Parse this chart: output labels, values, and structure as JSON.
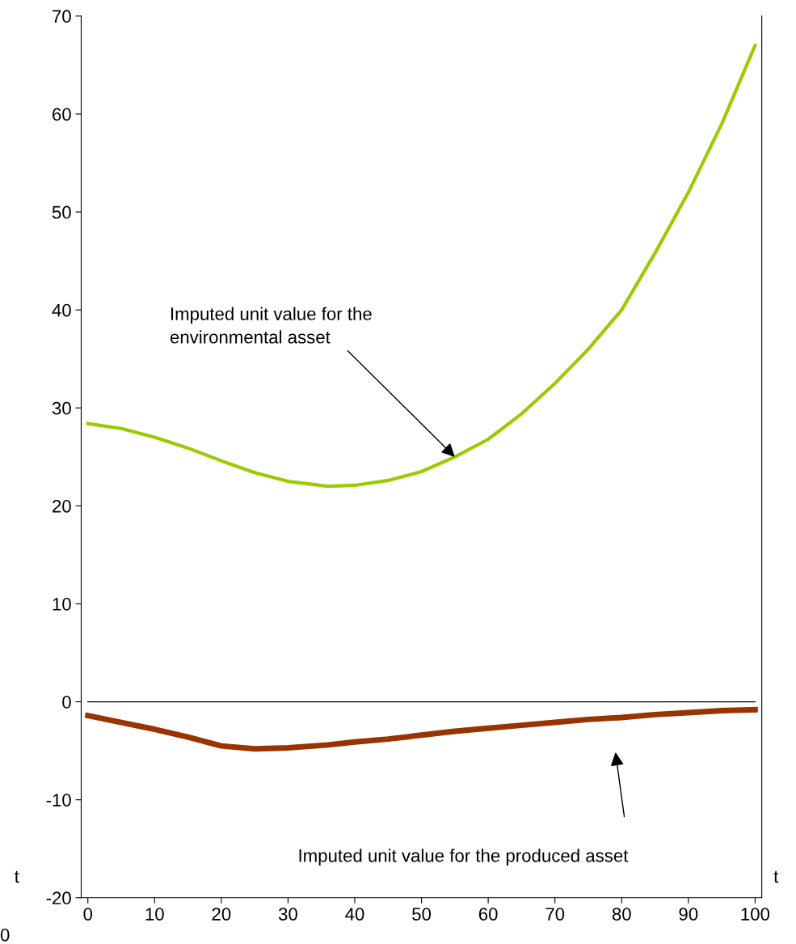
{
  "chart_data": {
    "type": "line",
    "x": [
      0,
      5,
      10,
      15,
      20,
      25,
      30,
      36,
      40,
      45,
      50,
      55,
      60,
      65,
      70,
      75,
      80,
      85,
      90,
      95,
      100
    ],
    "series": [
      {
        "color": "#99cc00",
        "values": [
          28.4,
          27.9,
          27.0,
          25.9,
          24.6,
          23.4,
          22.5,
          22.0,
          22.1,
          22.6,
          23.5,
          25.0,
          26.8,
          29.4,
          32.5,
          36.0,
          40.0,
          45.8,
          52.0,
          59.0,
          67.0
        ]
      },
      {
        "color": "#993300",
        "values": [
          -1.4,
          -2.1,
          -2.8,
          -3.6,
          -4.5,
          -4.8,
          -4.7,
          -4.4,
          -4.1,
          -3.8,
          -3.4,
          -3.0,
          -2.7,
          -2.4,
          -2.1,
          -1.8,
          -1.6,
          -1.3,
          -1.1,
          -0.9,
          -0.8
        ]
      }
    ],
    "xlim": [
      -1,
      101
    ],
    "ylim": [
      -20,
      70
    ],
    "xticks": [
      0,
      10,
      20,
      30,
      40,
      50,
      60,
      70,
      80,
      90,
      100
    ],
    "yticks": [
      -20,
      -10,
      0,
      10,
      20,
      30,
      40,
      50,
      60,
      70
    ],
    "ref_lines": [
      {
        "axis": "y",
        "value": 0,
        "color": "#000000"
      }
    ],
    "annotations": [
      {
        "text": "Imputed unit value for the\nenvironmental asset",
        "x": 55,
        "y": 25
      },
      "Imputed unit value for the produced asset",
      "t",
      "t",
      "0"
    ],
    "grid": false,
    "legend": false,
    "marker": "none",
    "line_style": "solid"
  }
}
